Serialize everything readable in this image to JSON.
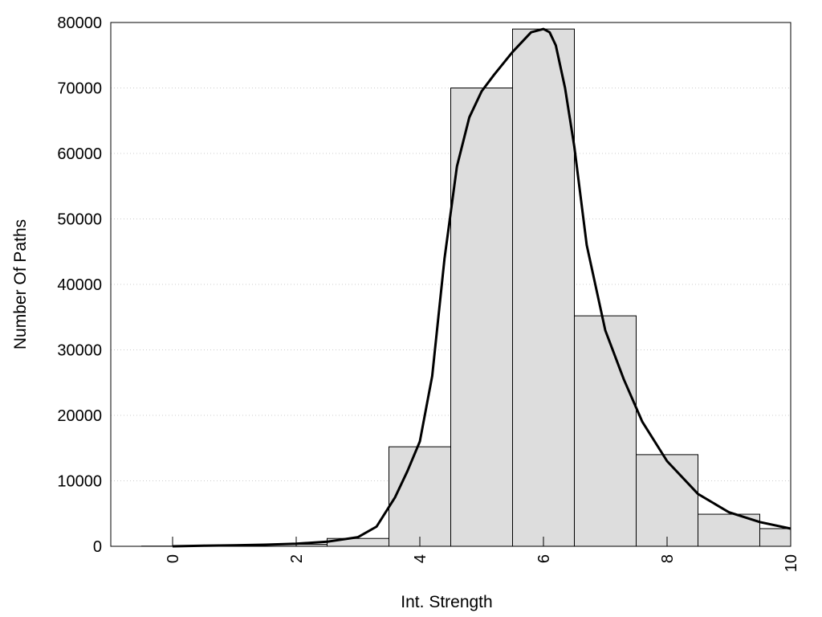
{
  "chart_data": {
    "type": "bar",
    "title": "",
    "xlabel": "Int. Strength",
    "ylabel": "Number Of Paths",
    "xlim": [
      -1,
      10
    ],
    "ylim": [
      0,
      80000
    ],
    "x_ticks": [
      0,
      2,
      4,
      6,
      8,
      10
    ],
    "y_ticks": [
      0,
      10000,
      20000,
      30000,
      40000,
      50000,
      60000,
      70000,
      80000
    ],
    "grid": "horizontal dotted",
    "bins": [
      {
        "x": 0,
        "value": 30
      },
      {
        "x": 1,
        "value": 100
      },
      {
        "x": 2,
        "value": 300
      },
      {
        "x": 3,
        "value": 1200
      },
      {
        "x": 4,
        "value": 15200
      },
      {
        "x": 5,
        "value": 70000
      },
      {
        "x": 6,
        "value": 79000
      },
      {
        "x": 7,
        "value": 35200
      },
      {
        "x": 8,
        "value": 14000
      },
      {
        "x": 9,
        "value": 4900
      },
      {
        "x": 10,
        "value": 2700
      }
    ],
    "curve": {
      "x": [
        0,
        0.5,
        1,
        1.5,
        2,
        2.5,
        3,
        3.3,
        3.6,
        3.8,
        4,
        4.2,
        4.4,
        4.6,
        4.8,
        5,
        5.2,
        5.5,
        5.8,
        6,
        6.1,
        6.2,
        6.35,
        6.5,
        6.7,
        7,
        7.3,
        7.6,
        8,
        8.5,
        9,
        9.5,
        10
      ],
      "y": [
        0,
        100,
        150,
        250,
        400,
        700,
        1400,
        3000,
        7500,
        11500,
        16000,
        26000,
        44000,
        58000,
        65500,
        69500,
        72000,
        75500,
        78500,
        79000,
        78500,
        76500,
        70000,
        61000,
        46000,
        33000,
        25500,
        19000,
        13000,
        8000,
        5200,
        3700,
        2700
      ]
    },
    "colors": {
      "bar_fill": "#dddddd",
      "bar_stroke": "#000000",
      "curve": "#000000",
      "grid": "#cccccc"
    }
  }
}
